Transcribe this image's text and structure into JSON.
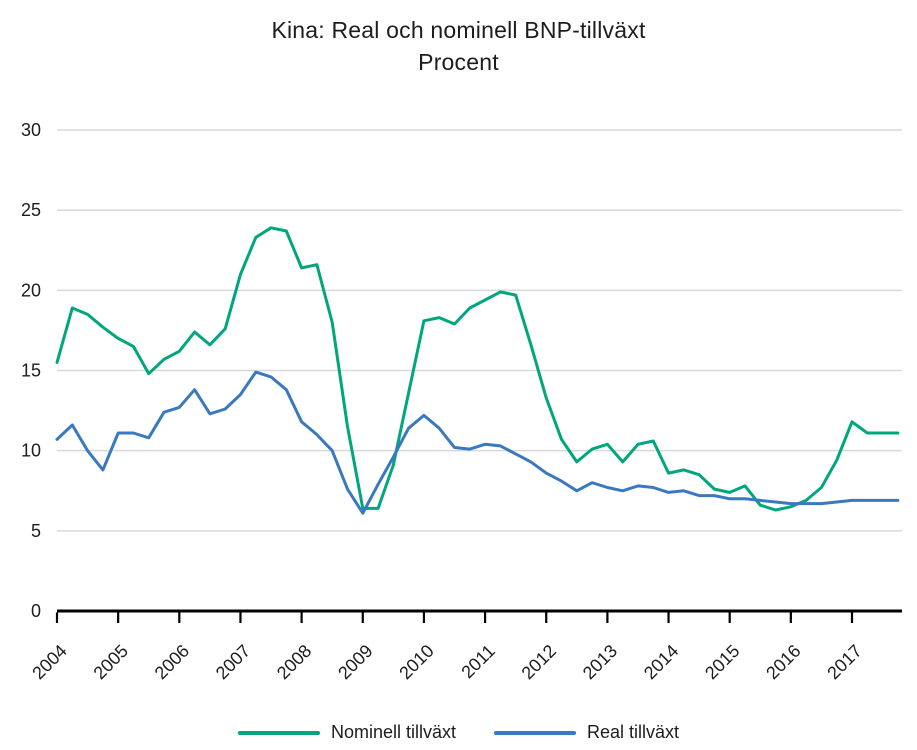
{
  "title": {
    "line1": "Kina: Real och nominell BNP-tillväxt",
    "line2": "Procent"
  },
  "chart_data": {
    "type": "line",
    "title": "Kina: Real och nominell BNP-tillväxt",
    "subtitle": "Procent",
    "x_frequency": "quarterly",
    "x_start": "2004 Q1",
    "x_end": "2017 Q4",
    "categories": [
      "2004",
      "2005",
      "2006",
      "2007",
      "2008",
      "2009",
      "2010",
      "2011",
      "2012",
      "2013",
      "2014",
      "2015",
      "2016",
      "2017"
    ],
    "y_ticks": [
      0,
      5,
      10,
      15,
      20,
      25,
      30
    ],
    "ylim": [
      0,
      30
    ],
    "grid": "horizontal",
    "legend_position": "bottom",
    "series": [
      {
        "name": "Nominell tillväxt",
        "color": "#00a67d",
        "values": [
          15.5,
          18.9,
          18.5,
          17.7,
          17.0,
          16.5,
          14.8,
          15.7,
          16.2,
          17.4,
          16.6,
          17.6,
          21.0,
          23.3,
          23.9,
          23.7,
          21.4,
          21.6,
          18.0,
          11.5,
          6.4,
          6.4,
          9.1,
          13.6,
          18.1,
          18.3,
          17.9,
          18.9,
          19.4,
          19.9,
          19.7,
          16.6,
          13.3,
          10.7,
          9.3,
          10.1,
          10.4,
          9.3,
          10.4,
          10.6,
          8.6,
          8.8,
          8.5,
          7.6,
          7.4,
          7.8,
          6.6,
          6.3,
          6.5,
          6.9,
          7.7,
          9.4,
          11.8,
          11.1,
          11.1,
          11.1
        ]
      },
      {
        "name": "Real tillväxt",
        "color": "#3a79bf",
        "values": [
          10.7,
          11.6,
          10.0,
          8.8,
          11.1,
          11.1,
          10.8,
          12.4,
          12.7,
          13.8,
          12.3,
          12.6,
          13.5,
          14.9,
          14.6,
          13.8,
          11.8,
          11.0,
          10.0,
          7.6,
          6.1,
          7.9,
          9.6,
          11.4,
          12.2,
          11.4,
          10.2,
          10.1,
          10.4,
          10.3,
          9.8,
          9.3,
          8.6,
          8.1,
          7.5,
          8.0,
          7.7,
          7.5,
          7.8,
          7.7,
          7.4,
          7.5,
          7.2,
          7.2,
          7.0,
          7.0,
          6.9,
          6.8,
          6.7,
          6.7,
          6.7,
          6.8,
          6.9,
          6.9,
          6.9,
          6.9
        ]
      }
    ],
    "colors": {
      "gridline": "#d9d9d9",
      "axis": "#000000",
      "text": "#1d1d1b"
    }
  }
}
